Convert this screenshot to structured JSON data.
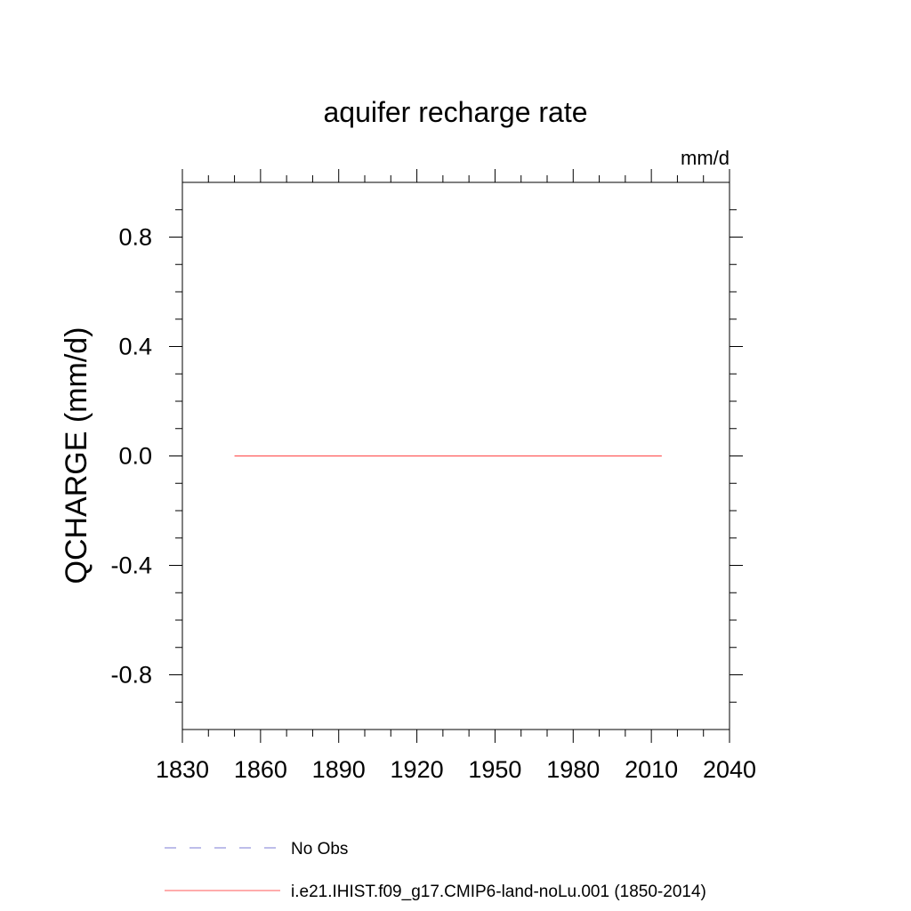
{
  "chart_data": {
    "type": "line",
    "title": "aquifer recharge rate",
    "units": "mm/d",
    "xlabel": "",
    "ylabel": "QCHARGE  (mm/d)",
    "xlim": [
      1830,
      2040
    ],
    "ylim": [
      -1.0,
      1.0
    ],
    "xticks": [
      1830,
      1860,
      1890,
      1920,
      1950,
      1980,
      2010,
      2040
    ],
    "xtick_labels": [
      "1830",
      "1860",
      "1890",
      "1920",
      "1950",
      "1980",
      "2010",
      "2040"
    ],
    "yticks": [
      -0.8,
      -0.4,
      0.0,
      0.4,
      0.8
    ],
    "ytick_labels": [
      "-0.8",
      "-0.4",
      "0.0",
      "0.4",
      "0.8"
    ],
    "grid": false,
    "legend_position": "bottom",
    "series": [
      {
        "name": "No Obs",
        "color": "#7b7bd6",
        "dash": "dashed",
        "x": [],
        "y": []
      },
      {
        "name": "i.e21.IHIST.f09_g17.CMIP6-land-noLu.001 (1850-2014)",
        "color": "#ff5a5a",
        "dash": "solid",
        "x": [
          1850,
          2014
        ],
        "y": [
          0.0,
          0.0
        ]
      }
    ]
  }
}
